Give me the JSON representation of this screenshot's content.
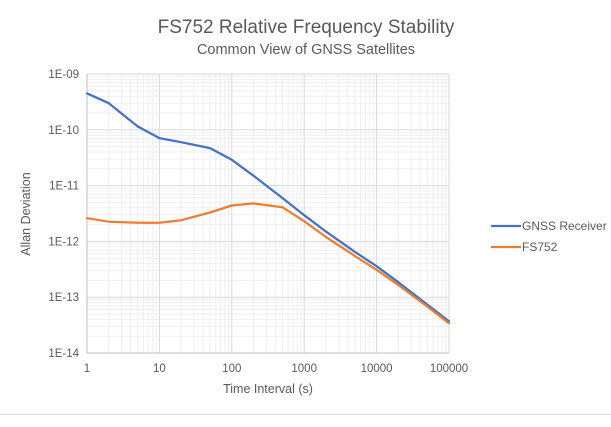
{
  "chart_data": {
    "type": "line",
    "title": "FS752 Relative Frequency Stability",
    "subtitle": "Common View of GNSS Satellites",
    "xlabel": "Time Interval (s)",
    "ylabel": "Allan Deviation",
    "xscale": "log",
    "yscale": "log",
    "xlim": [
      1,
      100000
    ],
    "ylim": [
      1e-14,
      1e-09
    ],
    "x_tick_labels": [
      "1",
      "10",
      "100",
      "1000",
      "10000",
      "100000"
    ],
    "x_tick_values": [
      1,
      10,
      100,
      1000,
      10000,
      100000
    ],
    "y_tick_labels": [
      "1E-09",
      "1E-10",
      "1E-11",
      "1E-12",
      "1E-13",
      "1E-14"
    ],
    "y_tick_values": [
      1e-09,
      1e-10,
      1e-11,
      1e-12,
      1e-13,
      1e-14
    ],
    "grid": true,
    "minor_grid": true,
    "legend_position": "right",
    "series": [
      {
        "name": "GNSS Receiver",
        "color": "#4472C4",
        "x": [
          1,
          2,
          5,
          10,
          20,
          50,
          100,
          200,
          500,
          1000,
          2000,
          5000,
          10000,
          20000,
          50000,
          100000
        ],
        "values": [
          4.5e-10,
          3e-10,
          1.15e-10,
          7.1e-11,
          6e-11,
          4.7e-11,
          2.9e-11,
          1.5e-11,
          6e-12,
          2.95e-12,
          1.5e-12,
          6.5e-13,
          3.6e-13,
          1.85e-13,
          7.4e-14,
          3.7e-14
        ]
      },
      {
        "name": "FS752",
        "color": "#ED7D31",
        "x": [
          1,
          2,
          5,
          10,
          20,
          50,
          100,
          200,
          500,
          1000,
          2000,
          5000,
          10000,
          20000,
          50000,
          100000
        ],
        "values": [
          2.6e-12,
          2.25e-12,
          2.15e-12,
          2.15e-12,
          2.4e-12,
          3.3e-12,
          4.4e-12,
          4.8e-12,
          4.1e-12,
          2.3e-12,
          1.2e-12,
          5.5e-13,
          3.1e-13,
          1.65e-13,
          6.8e-14,
          3.4e-14
        ]
      }
    ]
  }
}
